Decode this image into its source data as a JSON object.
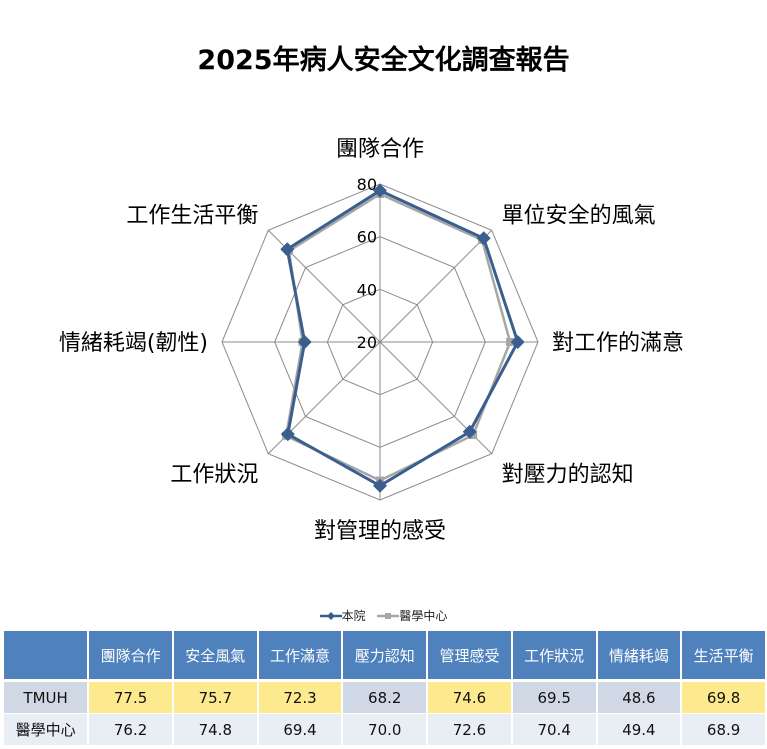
{
  "chart_data": {
    "type": "radar",
    "title": "2025年病人安全文化調查報告",
    "categories": [
      "團隊合作",
      "單位安全的風氣",
      "對工作的滿意",
      "對壓力的認知",
      "對管理的感受",
      "工作狀況",
      "情緒耗竭(韌性)",
      "工作生活平衡"
    ],
    "rlim": [
      20,
      80
    ],
    "ticks": [
      "20",
      "40",
      "60",
      "80"
    ],
    "tick_values": [
      20,
      40,
      60,
      80
    ],
    "series": [
      {
        "name": "本院",
        "color": "#3a5f8f",
        "marker": "diamond",
        "values": [
          77.5,
          75.7,
          72.3,
          68.2,
          74.6,
          69.5,
          48.6,
          69.8
        ]
      },
      {
        "name": "醫學中心",
        "color": "#a6a6a6",
        "marker": "square",
        "values": [
          76.2,
          74.8,
          69.4,
          70.0,
          72.6,
          70.4,
          49.4,
          68.9
        ]
      }
    ],
    "legend_position": "bottom"
  },
  "table": {
    "headers": [
      "",
      "團隊合作",
      "安全風氣",
      "工作滿意",
      "壓力認知",
      "管理感受",
      "工作狀況",
      "情緒耗竭",
      "生活平衡"
    ],
    "rows": [
      {
        "label": "TMUH",
        "cells": [
          "77.5",
          "75.7",
          "72.3",
          "68.2",
          "74.6",
          "69.5",
          "48.6",
          "69.8"
        ],
        "highlight": [
          true,
          true,
          true,
          false,
          true,
          false,
          false,
          true
        ]
      },
      {
        "label": "醫學中心",
        "cells": [
          "76.2",
          "74.8",
          "69.4",
          "70.0",
          "72.6",
          "70.4",
          "49.4",
          "68.9"
        ],
        "highlight": [
          false,
          false,
          false,
          false,
          false,
          false,
          false,
          false
        ]
      }
    ],
    "highlight_color": "#fde98e"
  }
}
